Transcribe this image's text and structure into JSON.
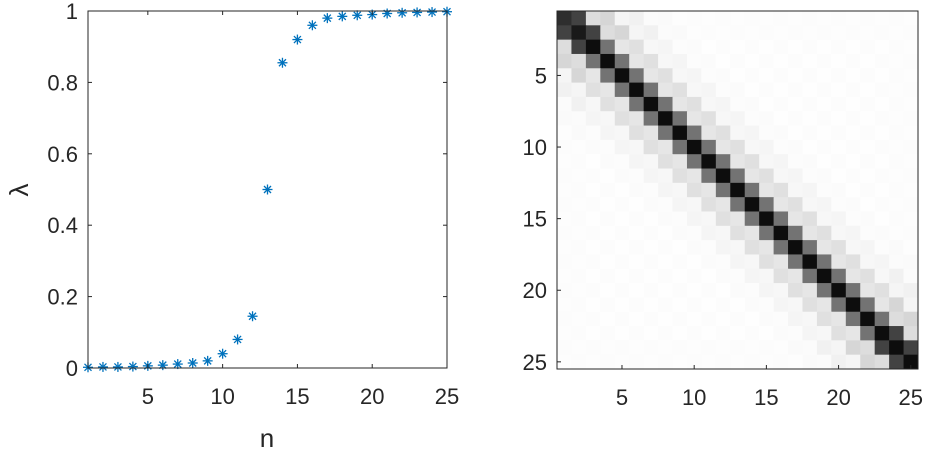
{
  "chart_data": [
    {
      "type": "scatter",
      "marker": "asterisk",
      "xlabel": "n",
      "ylabel": "λ",
      "xlim": [
        1,
        25
      ],
      "ylim": [
        0,
        1
      ],
      "xticks": [
        5,
        10,
        15,
        20,
        25
      ],
      "yticks": [
        0,
        0.2,
        0.4,
        0.6,
        0.8,
        1
      ],
      "x_tick_labels": [
        "5",
        "10",
        "15",
        "20",
        "25"
      ],
      "y_tick_labels": [
        "0",
        "0.2",
        "0.4",
        "0.6",
        "0.8",
        "1"
      ],
      "grid": false,
      "color": "#0072BD",
      "series": [
        {
          "x": [
            1,
            2,
            3,
            4,
            5,
            6,
            7,
            8,
            9,
            10,
            11,
            12,
            13,
            14,
            15,
            16,
            17,
            18,
            19,
            20,
            21,
            22,
            23,
            24,
            25
          ],
          "values": [
            0.002,
            0.003,
            0.003,
            0.004,
            0.006,
            0.008,
            0.011,
            0.014,
            0.02,
            0.04,
            0.08,
            0.145,
            0.5,
            0.855,
            0.92,
            0.96,
            0.98,
            0.985,
            0.988,
            0.99,
            0.993,
            0.995,
            0.996,
            0.997,
            0.998
          ]
        }
      ]
    },
    {
      "type": "heatmap",
      "colormap": "gray-inverted",
      "rows": 25,
      "cols": 25,
      "vmin": 0,
      "vmax": 1,
      "xticks": [
        5,
        10,
        15,
        20,
        25
      ],
      "yticks": [
        5,
        10,
        15,
        20,
        25
      ],
      "x_tick_labels": [
        "5",
        "10",
        "15",
        "20",
        "25"
      ],
      "y_tick_labels": [
        "5",
        "10",
        "15",
        "20",
        "25"
      ],
      "y_direction": "reverse",
      "grid": false,
      "diagonal_values": [
        0.82,
        0.9,
        0.95,
        0.95,
        0.95,
        0.95,
        0.95,
        0.95,
        0.95,
        0.95,
        0.95,
        0.95,
        0.95,
        0.95,
        0.95,
        0.95,
        0.95,
        0.95,
        0.95,
        0.95,
        0.95,
        0.95,
        0.95,
        0.95,
        0.95
      ],
      "offdiag_decay": [
        0.55,
        0.2,
        0.12,
        0.06,
        0.04,
        0.025,
        0.015
      ],
      "checker_damping": 0.5
    }
  ]
}
